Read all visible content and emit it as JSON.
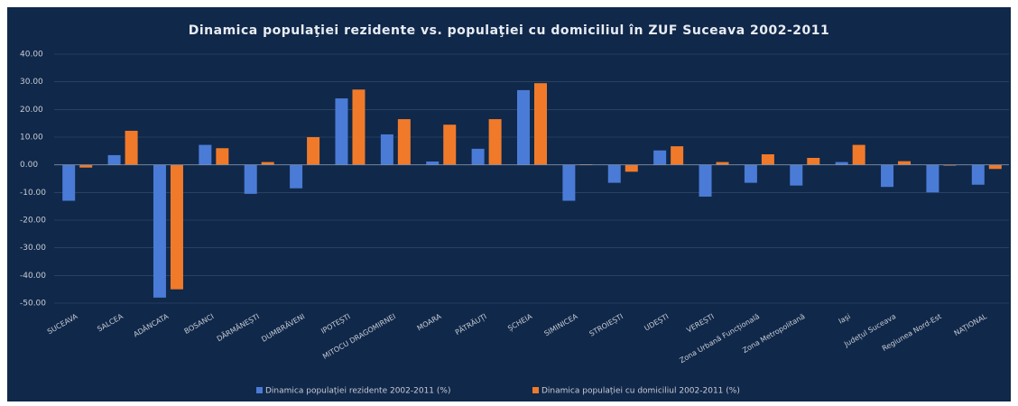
{
  "chart_data": {
    "type": "bar",
    "title": "Dinamica populaţiei rezidente vs. populaţiei cu domiciliul în ZUF Suceava 2002-2011",
    "categories": [
      "SUCEAVA",
      "SALCEA",
      "ADÂNCATA",
      "BOSANCI",
      "DĂRMĂNEȘTI",
      "DUMBRĂVENI",
      "IPOTEȘTI",
      "MITOCU DRAGOMIRNEI",
      "MOARA",
      "PĂTRĂUȚI",
      "ȘCHEIA",
      "SIMINICEA",
      "STROIEȘTI",
      "UDEȘTI",
      "VEREȘTI",
      "Zona Urbană Funcțională",
      "Zona Metropolitană",
      "Iași",
      "Județul Suceava",
      "Regiunea Nord-Est",
      "NAȚIONAL"
    ],
    "series": [
      {
        "name": "Dinamica populației rezidente 2002-2011 (%)",
        "color": "#4a7bd6",
        "values": [
          -13,
          3.5,
          -48,
          7.2,
          -10.5,
          -8.5,
          24,
          11,
          1.2,
          5.8,
          27,
          -13,
          -6.5,
          5.2,
          -11.5,
          -6.5,
          -7.5,
          1,
          -8,
          -10,
          -7.2
        ]
      },
      {
        "name": "Dinamica populației cu domiciliul 2002-2011 (%)",
        "color": "#f07a2a",
        "values": [
          -1,
          12.3,
          -45,
          6,
          1,
          10,
          27.2,
          16.5,
          14.5,
          16.5,
          29.5,
          0.2,
          -2.5,
          6.7,
          1,
          3.8,
          2.5,
          7.2,
          1.3,
          -0.3,
          -1.5
        ]
      }
    ],
    "ylim": [
      -50,
      40
    ],
    "yticks": [
      {
        "value": 40,
        "label": "40.00"
      },
      {
        "value": 30,
        "label": "30.00"
      },
      {
        "value": 20,
        "label": "20.00"
      },
      {
        "value": 10,
        "label": "10.00"
      },
      {
        "value": 0,
        "label": "0.00"
      },
      {
        "value": -10,
        "label": "-10.00"
      },
      {
        "value": -20,
        "label": "-20.00"
      },
      {
        "value": -30,
        "label": "-30.00"
      },
      {
        "value": -40,
        "label": "-40.00"
      },
      {
        "value": -50,
        "label": "-50.00"
      }
    ],
    "grid": true,
    "legend": "bottom"
  }
}
